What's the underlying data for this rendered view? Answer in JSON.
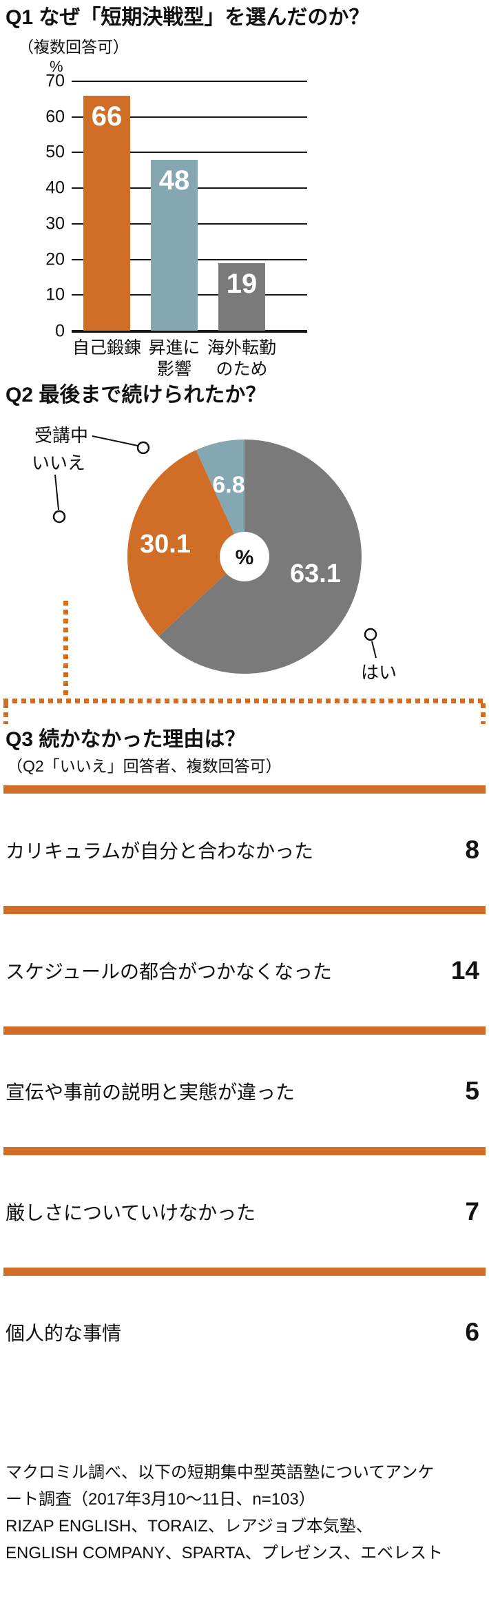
{
  "q1": {
    "title": "Q1 なぜ「短期決戦型」を選んだのか？",
    "subtitle": "（複数回答可）",
    "axis_unit": "%",
    "yticks": [
      70,
      60,
      50,
      40,
      30,
      20,
      10,
      0
    ],
    "bars": [
      {
        "line1": "自己鍛錬",
        "line2": "",
        "value": "66"
      },
      {
        "line1": "昇進に",
        "line2": "影響",
        "value": "48"
      },
      {
        "line1": "海外転勤",
        "line2": "のため",
        "value": "19"
      }
    ]
  },
  "q2": {
    "title": "Q2 最後まで続けられたか？",
    "center_unit": "%",
    "slices": [
      {
        "label": "はい",
        "value": "63.1"
      },
      {
        "label": "いいえ",
        "value": "30.1"
      },
      {
        "label": "受講中",
        "value": "6.8"
      }
    ]
  },
  "q3": {
    "title": "Q3 続かなかった理由は？",
    "subtitle": "（Q2「いいえ」回答者、複数回答可）",
    "rows": [
      {
        "label": "カリキュラムが自分と合わなかった",
        "value": "8"
      },
      {
        "label": "スケジュールの都合がつかなくなった",
        "value": "14"
      },
      {
        "label": "宣伝や事前の説明と実態が違った",
        "value": "5"
      },
      {
        "label": "厳しさについていけなかった",
        "value": "7"
      },
      {
        "label": "個人的な事情",
        "value": "6"
      }
    ]
  },
  "footer": {
    "lines": [
      "マクロミル調べ、以下の短期集中型英語塾についてアンケ",
      "ート調査（2017年3月10～11日、n=103）",
      "RIZAP ENGLISH、TORAIZ、レアジョブ本気塾、",
      "ENGLISH COMPANY、SPARTA、プレゼンス、エベレスト"
    ]
  },
  "colors": {
    "orange": "#d06e28",
    "blue_gray": "#84a7b1",
    "gray": "#7a7a7a",
    "text": "#111111",
    "background": "#ffffff"
  },
  "chart_data": [
    {
      "type": "bar",
      "title": "Q1 なぜ「短期決戦型」を選んだのか？",
      "subtitle": "（複数回答可）",
      "categories": [
        "自己鍛錬",
        "昇進に影響",
        "海外転勤のため"
      ],
      "values": [
        66,
        48,
        19
      ],
      "xlabel": "",
      "ylabel": "%",
      "ylim": [
        0,
        70
      ],
      "yticks": [
        0,
        10,
        20,
        30,
        40,
        50,
        60,
        70
      ],
      "grid": true,
      "legend": false,
      "bar_colors": [
        "#d06e28",
        "#84a7b1",
        "#7a7a7a"
      ]
    },
    {
      "type": "pie",
      "title": "Q2 最後まで続けられたか？",
      "labels": [
        "はい",
        "いいえ",
        "受講中"
      ],
      "values": [
        63.1,
        30.1,
        6.8
      ],
      "unit": "%",
      "colors": [
        "#7a7a7a",
        "#d06e28",
        "#84a7b1"
      ],
      "start_angle_deg": 0,
      "direction": "clockwise",
      "center_label": "%"
    },
    {
      "type": "table",
      "title": "Q3 続かなかった理由は？",
      "subtitle": "（Q2「いいえ」回答者、複数回答可）",
      "categories": [
        "カリキュラムが自分と合わなかった",
        "スケジュールの都合がつかなくなった",
        "宣伝や事前の説明と実態が違った",
        "厳しさについていけなかった",
        "個人的な事情"
      ],
      "values": [
        8,
        14,
        5,
        7,
        6
      ]
    }
  ]
}
